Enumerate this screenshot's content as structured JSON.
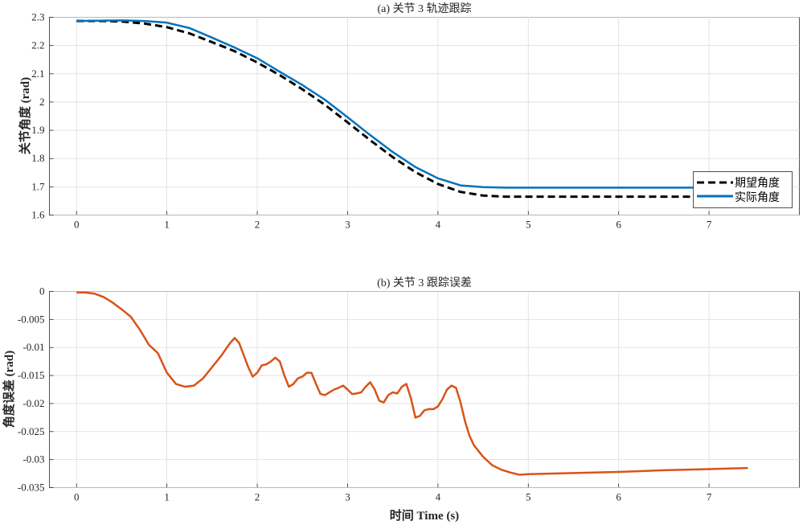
{
  "chart_data": [
    {
      "type": "line",
      "title": "(a) 关节 3 轨迹跟踪",
      "xlabel": "",
      "ylabel": "关节角度 (rad)",
      "xlim": [
        -0.3,
        8
      ],
      "ylim": [
        1.6,
        2.3
      ],
      "xticks": [
        0,
        1,
        2,
        3,
        4,
        5,
        6,
        7
      ],
      "xtick_labels": [
        "0",
        "1",
        "2",
        "3",
        "4",
        "5",
        "6",
        "7"
      ],
      "yticks": [
        1.6,
        1.7,
        1.8,
        1.9,
        2.0,
        2.1,
        2.2,
        2.3
      ],
      "ytick_labels": [
        "1.6",
        "1.7",
        "1.8",
        "1.9",
        "2",
        "2.1",
        "2.2",
        "2.3"
      ],
      "grid": true,
      "legend_position": "bottom-right",
      "series": [
        {
          "name": "期望角度",
          "color": "#000000",
          "style": "dashed",
          "x": [
            0,
            0.25,
            0.5,
            0.75,
            1.0,
            1.25,
            1.5,
            1.75,
            2.0,
            2.25,
            2.5,
            2.75,
            3.0,
            3.25,
            3.5,
            3.75,
            4.0,
            4.25,
            4.5,
            4.75,
            5.0,
            5.5,
            6.0,
            6.5,
            7.0,
            7.43
          ],
          "y": [
            2.287,
            2.287,
            2.285,
            2.278,
            2.265,
            2.243,
            2.212,
            2.18,
            2.14,
            2.095,
            2.045,
            1.99,
            1.928,
            1.865,
            1.805,
            1.752,
            1.71,
            1.682,
            1.669,
            1.665,
            1.665,
            1.665,
            1.665,
            1.665,
            1.665,
            1.665
          ]
        },
        {
          "name": "实际角度",
          "color": "#0072BD",
          "style": "solid",
          "x": [
            0,
            0.25,
            0.5,
            0.75,
            1.0,
            1.25,
            1.5,
            1.75,
            2.0,
            2.25,
            2.5,
            2.75,
            3.0,
            3.25,
            3.5,
            3.75,
            4.0,
            4.25,
            4.5,
            4.75,
            5.0,
            5.5,
            6.0,
            6.5,
            7.0,
            7.43
          ],
          "y": [
            2.287,
            2.288,
            2.289,
            2.287,
            2.281,
            2.262,
            2.228,
            2.193,
            2.155,
            2.107,
            2.06,
            2.008,
            1.946,
            1.883,
            1.823,
            1.77,
            1.73,
            1.705,
            1.699,
            1.697,
            1.697,
            1.697,
            1.697,
            1.697,
            1.697,
            1.697
          ]
        }
      ]
    },
    {
      "type": "line",
      "title": "(b) 关节 3 跟踪误差",
      "xlabel": "时间 Time (s)",
      "ylabel": "角度误差 (rad)",
      "xlim": [
        -0.3,
        8
      ],
      "ylim": [
        -0.035,
        0
      ],
      "xticks": [
        0,
        1,
        2,
        3,
        4,
        5,
        6,
        7
      ],
      "xtick_labels": [
        "0",
        "1",
        "2",
        "3",
        "4",
        "5",
        "6",
        "7"
      ],
      "yticks": [
        0,
        -0.005,
        -0.01,
        -0.015,
        -0.02,
        -0.025,
        -0.03,
        -0.035
      ],
      "ytick_labels": [
        "0",
        "-0.005",
        "-0.01",
        "-0.015",
        "-0.02",
        "-0.025",
        "-0.03",
        "-0.035"
      ],
      "grid": true,
      "series": [
        {
          "name": "",
          "color": "#D95319",
          "style": "solid",
          "x": [
            0,
            0.1,
            0.2,
            0.3,
            0.4,
            0.5,
            0.6,
            0.7,
            0.8,
            0.9,
            1.0,
            1.1,
            1.2,
            1.3,
            1.4,
            1.5,
            1.6,
            1.7,
            1.75,
            1.8,
            1.9,
            1.95,
            2.0,
            2.05,
            2.1,
            2.15,
            2.2,
            2.25,
            2.3,
            2.35,
            2.4,
            2.45,
            2.5,
            2.55,
            2.6,
            2.65,
            2.7,
            2.75,
            2.8,
            2.85,
            2.9,
            2.95,
            3.0,
            3.05,
            3.1,
            3.15,
            3.2,
            3.25,
            3.3,
            3.35,
            3.4,
            3.45,
            3.5,
            3.55,
            3.6,
            3.65,
            3.7,
            3.75,
            3.8,
            3.85,
            3.9,
            3.95,
            4.0,
            4.05,
            4.1,
            4.15,
            4.2,
            4.25,
            4.3,
            4.35,
            4.4,
            4.5,
            4.6,
            4.7,
            4.8,
            4.9,
            5.0,
            5.5,
            6.0,
            6.5,
            7.0,
            7.43
          ],
          "y": [
            -0.0002,
            -0.0002,
            -0.0004,
            -0.001,
            -0.002,
            -0.0032,
            -0.0045,
            -0.0068,
            -0.0095,
            -0.011,
            -0.0145,
            -0.0165,
            -0.017,
            -0.0168,
            -0.0155,
            -0.0135,
            -0.0115,
            -0.0092,
            -0.0083,
            -0.0092,
            -0.0135,
            -0.0152,
            -0.0145,
            -0.0132,
            -0.013,
            -0.0125,
            -0.0118,
            -0.0125,
            -0.015,
            -0.017,
            -0.0165,
            -0.0155,
            -0.0152,
            -0.0145,
            -0.0145,
            -0.0165,
            -0.0183,
            -0.0185,
            -0.018,
            -0.0175,
            -0.0172,
            -0.0168,
            -0.0175,
            -0.0183,
            -0.0182,
            -0.018,
            -0.017,
            -0.0162,
            -0.0175,
            -0.0195,
            -0.0198,
            -0.0185,
            -0.018,
            -0.0182,
            -0.017,
            -0.0165,
            -0.019,
            -0.0225,
            -0.0222,
            -0.0212,
            -0.021,
            -0.021,
            -0.0205,
            -0.0192,
            -0.0175,
            -0.0168,
            -0.0172,
            -0.0198,
            -0.0232,
            -0.0258,
            -0.0275,
            -0.0295,
            -0.031,
            -0.0318,
            -0.0323,
            -0.0327,
            -0.0326,
            -0.0324,
            -0.0322,
            -0.0319,
            -0.0317,
            -0.0315
          ]
        }
      ]
    }
  ]
}
